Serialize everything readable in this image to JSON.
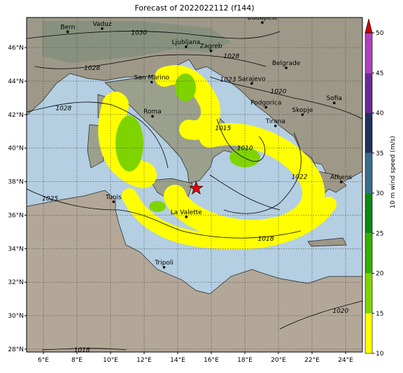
{
  "title": "Forecast of 2022022112 (f144)",
  "map": {
    "lon_lim": [
      5,
      25
    ],
    "lat_lim": [
      27.83,
      47.8
    ],
    "lon_ticks": [
      {
        "value": 6,
        "label": "6°E"
      },
      {
        "value": 8,
        "label": "8°E"
      },
      {
        "value": 10,
        "label": "10°E"
      },
      {
        "value": 12,
        "label": "12°E"
      },
      {
        "value": 14,
        "label": "14°E"
      },
      {
        "value": 16,
        "label": "16°E"
      },
      {
        "value": 18,
        "label": "18°E"
      },
      {
        "value": 20,
        "label": "20°E"
      },
      {
        "value": 22,
        "label": "22°E"
      },
      {
        "value": 24,
        "label": "24°E"
      }
    ],
    "lat_ticks": [
      {
        "value": 28,
        "label": "28°N"
      },
      {
        "value": 30,
        "label": "30°N"
      },
      {
        "value": 32,
        "label": "32°N"
      },
      {
        "value": 34,
        "label": "34°N"
      },
      {
        "value": 36,
        "label": "36°N"
      },
      {
        "value": 38,
        "label": "38°N"
      },
      {
        "value": 40,
        "label": "40°N"
      },
      {
        "value": 42,
        "label": "42°N"
      },
      {
        "value": 44,
        "label": "44°N"
      },
      {
        "value": 46,
        "label": "46°N"
      }
    ],
    "grid": true,
    "cities": [
      {
        "name": "Bern",
        "lon": 7.45,
        "lat": 46.95
      },
      {
        "name": "Vaduz",
        "lon": 9.5,
        "lat": 47.14
      },
      {
        "name": "Budapest",
        "lon": 19.04,
        "lat": 47.5
      },
      {
        "name": "Ljubljana",
        "lon": 14.5,
        "lat": 46.05
      },
      {
        "name": "Zagreb",
        "lon": 15.98,
        "lat": 45.81
      },
      {
        "name": "San Marino",
        "lon": 12.45,
        "lat": 43.94
      },
      {
        "name": "Sarajevo",
        "lon": 18.41,
        "lat": 43.86
      },
      {
        "name": "Belgrade",
        "lon": 20.46,
        "lat": 44.79
      },
      {
        "name": "Roma",
        "lon": 12.5,
        "lat": 41.9
      },
      {
        "name": "Podgorica",
        "lon": 19.26,
        "lat": 42.44
      },
      {
        "name": "Sofia",
        "lon": 23.32,
        "lat": 42.7
      },
      {
        "name": "Skopje",
        "lon": 21.43,
        "lat": 42.0
      },
      {
        "name": "Tirana",
        "lon": 19.82,
        "lat": 41.33
      },
      {
        "name": "Athens",
        "lon": 23.73,
        "lat": 37.98
      },
      {
        "name": "Tunis",
        "lon": 10.18,
        "lat": 36.8
      },
      {
        "name": "La Valette",
        "lon": 14.51,
        "lat": 35.9
      },
      {
        "name": "Tripoli",
        "lon": 13.19,
        "lat": 32.89
      }
    ],
    "marker": {
      "lon": 15.1,
      "lat": 37.6,
      "color": "#e00000"
    },
    "isobar_labels": [
      {
        "value": 1030,
        "lon": 11.7,
        "lat": 46.9
      },
      {
        "value": 1028,
        "lon": 8.9,
        "lat": 44.8
      },
      {
        "value": 1028,
        "lon": 7.2,
        "lat": 42.4
      },
      {
        "value": 1028,
        "lon": 17.2,
        "lat": 45.5
      },
      {
        "value": 1025,
        "lon": 6.4,
        "lat": 37.0
      },
      {
        "value": 1023,
        "lon": 17.0,
        "lat": 44.1
      },
      {
        "value": 1020,
        "lon": 20.0,
        "lat": 43.4
      },
      {
        "value": 1015,
        "lon": 16.7,
        "lat": 41.2
      },
      {
        "value": 1010,
        "lon": 18.0,
        "lat": 40.0
      },
      {
        "value": 1022,
        "lon": 21.25,
        "lat": 38.3
      },
      {
        "value": 1018,
        "lon": 19.25,
        "lat": 34.6
      },
      {
        "value": 1020,
        "lon": 23.7,
        "lat": 30.3
      },
      {
        "value": 1018,
        "lon": 8.3,
        "lat": 27.95
      }
    ]
  },
  "colorbar": {
    "label": "10 m wind speed (m/s)",
    "lim": [
      10,
      50
    ],
    "ticks": [
      10,
      15,
      20,
      25,
      30,
      35,
      40,
      45,
      50
    ],
    "colors": [
      "#ffff00",
      "#7fd400",
      "#33b000",
      "#0a8a10",
      "#3a6d8c",
      "#22305e",
      "#6a2a9a",
      "#b040c0"
    ],
    "extend_color": "#cc0000"
  }
}
